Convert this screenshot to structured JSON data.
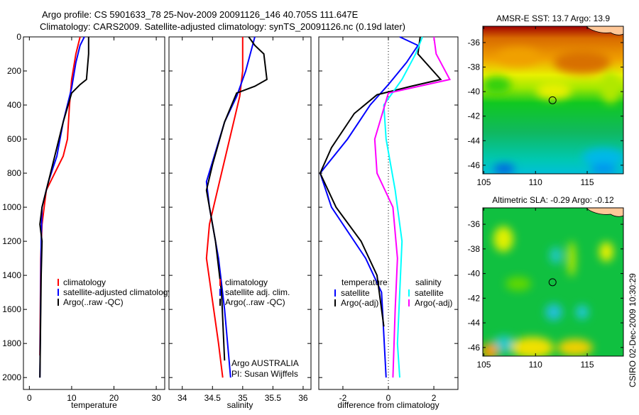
{
  "title_line1": "Argo profile: CS 5901633_78 25-Nov-2009 20091126_146 40.705S 111.647E",
  "title_line2": "Climatology: CARS2009. Satellite-adjusted climatology: synTS_20091126.nc (0.19d later)",
  "credit": "Argo AUSTRALIA",
  "pi": "PI: Susan Wijffels",
  "stamp": "CSIRO 02-Dec-2009 10:30:29",
  "chart_data": [
    {
      "type": "line",
      "id": "temp",
      "xlabel": "temperature",
      "ylabel": "",
      "xlim": [
        -1.4,
        32
      ],
      "ylim": [
        0,
        2070
      ],
      "xticks": [
        0,
        10,
        20,
        30
      ],
      "yticks": [
        0,
        200,
        400,
        600,
        800,
        1000,
        1200,
        1400,
        1600,
        1800,
        2000
      ],
      "legend": [
        "climatology",
        "satellite-adjusted climatology",
        "Argo(..raw -QC)"
      ],
      "legend_placement": "lower-right",
      "series": [
        {
          "name": "climatology",
          "color": "#ff0000",
          "x": [
            12,
            11,
            10,
            9.5,
            9,
            8,
            6,
            4,
            3,
            2.7,
            2.5
          ],
          "y": [
            0,
            100,
            250,
            400,
            600,
            700,
            800,
            900,
            1100,
            1300,
            1870
          ]
        },
        {
          "name": "satellite-adjusted climatology",
          "color": "#0000ff",
          "x": [
            13,
            12,
            11,
            10,
            8,
            6.5,
            4.5,
            3,
            2.8,
            2.5
          ],
          "y": [
            0,
            50,
            150,
            300,
            500,
            700,
            850,
            1000,
            1200,
            2000
          ]
        },
        {
          "name": "Argo(..raw -QC)",
          "color": "#000000",
          "x": [
            14,
            14,
            13.5,
            12,
            10,
            8,
            6,
            4.5,
            3,
            2.5,
            3,
            2.8,
            2.5
          ],
          "y": [
            0,
            100,
            250,
            280,
            330,
            500,
            700,
            850,
            1000,
            1100,
            1200,
            1400,
            2000
          ]
        }
      ]
    },
    {
      "type": "line",
      "id": "sal",
      "xlabel": "salinity",
      "xlim": [
        33.78,
        36.13
      ],
      "ylim": [
        0,
        2070
      ],
      "xticks": [
        34,
        34.5,
        35,
        35.5,
        36
      ],
      "yticks": [
        0,
        200,
        400,
        600,
        800,
        1000,
        1200,
        1400,
        1600,
        1800,
        2000
      ],
      "legend": [
        "climatology",
        "satellite adj. clim.",
        "Argo(..raw -QC)"
      ],
      "legend_placement": "lower-right",
      "series": [
        {
          "name": "climatology",
          "color": "#ff0000",
          "x": [
            35.0,
            35.0,
            34.95,
            34.85,
            34.65,
            34.45,
            34.4,
            34.6,
            34.67
          ],
          "y": [
            0,
            200,
            350,
            500,
            800,
            1100,
            1300,
            1800,
            2000
          ]
        },
        {
          "name": "satellite adj. clim.",
          "color": "#0000ff",
          "x": [
            35.2,
            35.05,
            34.9,
            34.7,
            34.4,
            34.45,
            34.6,
            34.7,
            34.8
          ],
          "y": [
            0,
            200,
            350,
            500,
            850,
            1000,
            1300,
            1600,
            2000
          ]
        },
        {
          "name": "Argo(..raw -QC)",
          "color": "#000000",
          "x": [
            35.1,
            35.2,
            35.35,
            35.4,
            35.2,
            34.9,
            34.7,
            34.5,
            34.4,
            34.45,
            34.55,
            34.65,
            34.7
          ],
          "y": [
            0,
            50,
            100,
            250,
            290,
            330,
            500,
            750,
            900,
            1000,
            1200,
            1500,
            1900
          ]
        }
      ]
    },
    {
      "type": "line",
      "id": "diff",
      "xlabel": "difference from climatology",
      "xlim": [
        -3.06,
        3.06
      ],
      "ylim": [
        0,
        2070
      ],
      "xticks": [
        -2,
        0,
        2
      ],
      "yticks": [
        0,
        200,
        400,
        600,
        800,
        1000,
        1200,
        1400,
        1600,
        1800,
        2000
      ],
      "legend_temperature_title": "temperature",
      "legend_salinity_title": "salinity",
      "legend": [
        "satellite",
        "Argo(-adj)",
        "satellite",
        "Argo(-adj)"
      ],
      "series": [
        {
          "name": "temperature satellite",
          "color": "#0000ff",
          "x": [
            0.5,
            1.3,
            0.8,
            0,
            -0.8,
            -1.8,
            -3,
            -2.5,
            -1,
            -0.3,
            -0.1
          ],
          "y": [
            0,
            50,
            150,
            280,
            400,
            600,
            800,
            1000,
            1300,
            1500,
            2000
          ]
        },
        {
          "name": "temperature Argo(-adj)",
          "color": "#000000",
          "x": [
            1.4,
            1.3,
            2.3,
            1,
            -0.5,
            -1.5,
            -2.5,
            -3,
            -2.3,
            -1.2,
            -0.5,
            -0.2
          ],
          "y": [
            0,
            100,
            250,
            290,
            340,
            450,
            650,
            800,
            1000,
            1200,
            1400,
            1700
          ]
        },
        {
          "name": "salinity satellite",
          "color": "#00ffff",
          "x": [
            1.5,
            1.2,
            0.6,
            -0.2,
            -0.1,
            0.3,
            0.6,
            0.5,
            0.4,
            0.5
          ],
          "y": [
            0,
            100,
            250,
            400,
            600,
            900,
            1200,
            1500,
            1800,
            2000
          ]
        },
        {
          "name": "salinity Argo(-adj)",
          "color": "#ff00ff",
          "x": [
            2,
            2.1,
            2.7,
            0,
            -0.6,
            -0.5,
            0.2,
            0.4,
            0.3,
            0.2
          ],
          "y": [
            0,
            100,
            250,
            330,
            600,
            800,
            1000,
            1300,
            1600,
            2000
          ]
        }
      ]
    },
    {
      "type": "heatmap",
      "id": "sst",
      "title": "AMSR-E SST: 13.7 Argo: 13.9",
      "xlim": [
        104.9,
        118.5
      ],
      "ylim": [
        -46.7,
        -34.67
      ],
      "xticks": [
        105,
        110,
        115
      ],
      "yticks": [
        -36,
        -38,
        -40,
        -42,
        -44,
        -46
      ],
      "marker": {
        "lon": 111.647,
        "lat": -40.705
      }
    },
    {
      "type": "heatmap",
      "id": "sla",
      "title": "Altimetric SLA: -0.29 Argo: -0.12",
      "xlim": [
        104.9,
        118.5
      ],
      "ylim": [
        -46.7,
        -34.67
      ],
      "xticks": [
        105,
        110,
        115
      ],
      "yticks": [
        -36,
        -38,
        -40,
        -42,
        -44,
        -46
      ],
      "marker": {
        "lon": 111.647,
        "lat": -40.705
      }
    }
  ]
}
